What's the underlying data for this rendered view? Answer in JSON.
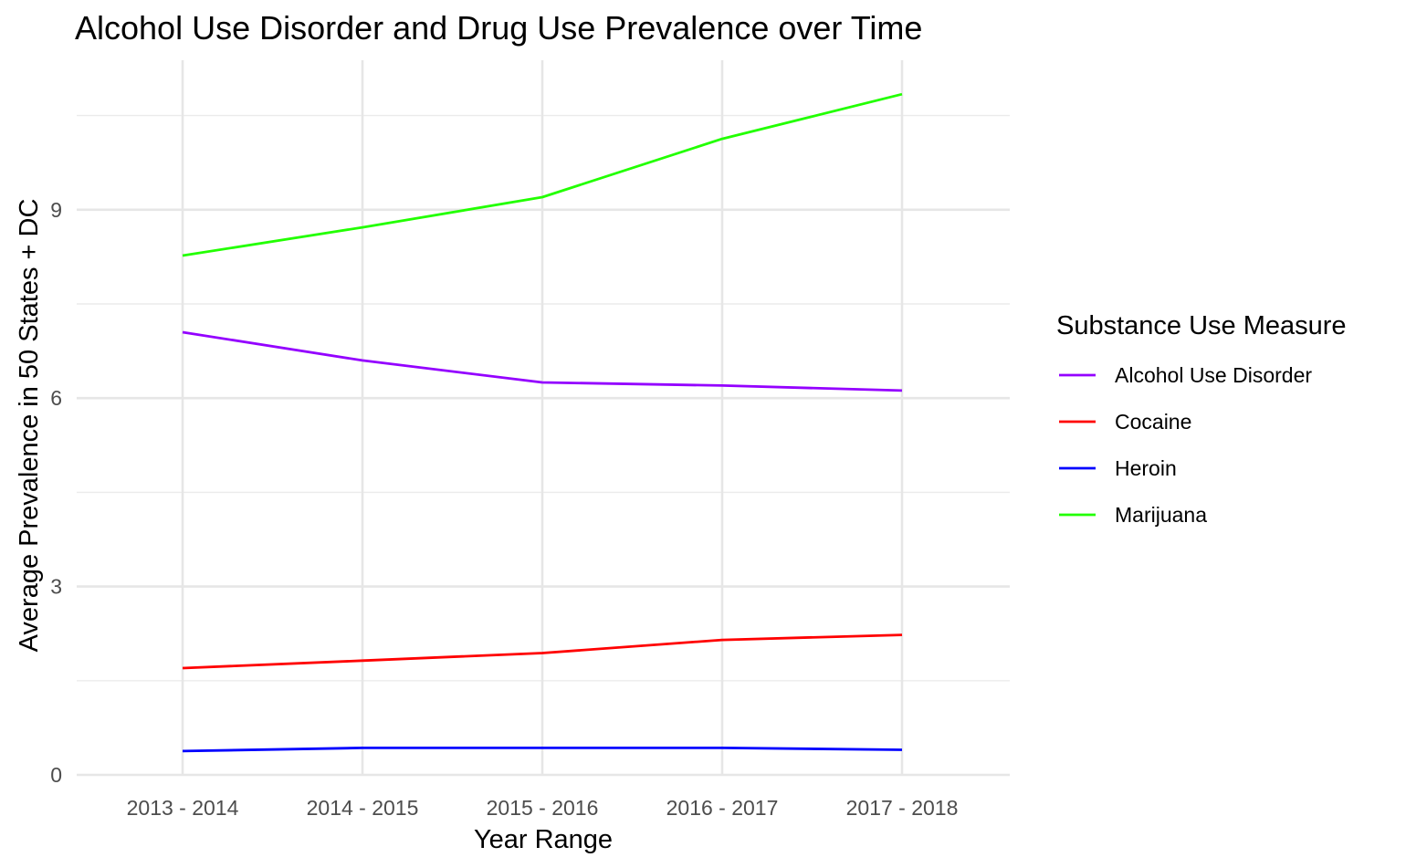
{
  "chart_data": {
    "type": "line",
    "title": "Alcohol Use Disorder and Drug Use Prevalence over Time",
    "xlabel": "Year Range",
    "ylabel": "Average Prevalence in 50 States + DC",
    "categories": [
      "2013 - 2014",
      "2014 - 2015",
      "2015 - 2016",
      "2016 - 2017",
      "2017 - 2018"
    ],
    "y_ticks": [
      "0",
      "3",
      "6",
      "9"
    ],
    "ylim": [
      0,
      11.5
    ],
    "grid": true,
    "legend": {
      "title": "Substance Use Measure",
      "position": "right"
    },
    "series": [
      {
        "name": "Alcohol Use Disorder",
        "color": "#9400FF",
        "values": [
          7.05,
          6.6,
          6.25,
          6.2,
          6.12
        ]
      },
      {
        "name": "Cocaine",
        "color": "#FF0000",
        "values": [
          1.7,
          1.82,
          1.94,
          2.15,
          2.23
        ]
      },
      {
        "name": "Heroin",
        "color": "#0000FF",
        "values": [
          0.38,
          0.43,
          0.43,
          0.43,
          0.4
        ]
      },
      {
        "name": "Marijuana",
        "color": "#22FF00",
        "values": [
          8.27,
          8.72,
          9.2,
          10.13,
          10.84
        ]
      }
    ]
  }
}
